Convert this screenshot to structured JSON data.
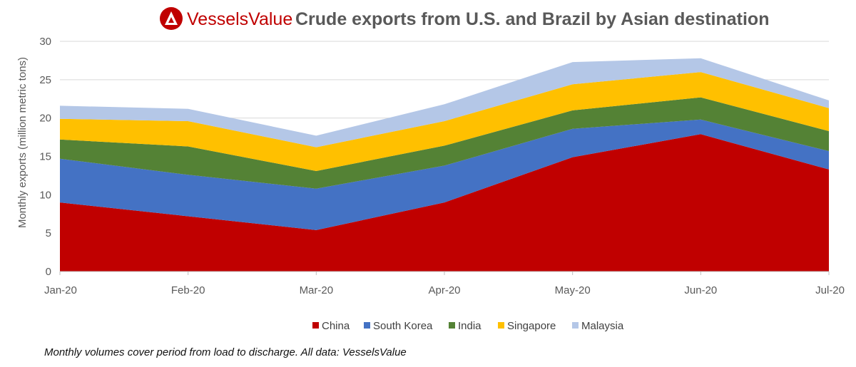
{
  "brand": {
    "name": "VesselsValue",
    "logo_color": "#c00000"
  },
  "footnote": "Monthly volumes cover period from load to discharge. All data: VesselsValue",
  "chart_data": {
    "type": "area",
    "stacked": true,
    "title": "Crude exports from U.S. and Brazil by Asian destination",
    "xlabel": "",
    "ylabel": "Monthly exports (million metric tons)",
    "categories": [
      "Jan-20",
      "Feb-20",
      "Mar-20",
      "Apr-20",
      "May-20",
      "Jun-20",
      "Jul-20"
    ],
    "ylim": [
      0,
      30
    ],
    "yticks": [
      0,
      5,
      10,
      15,
      20,
      25,
      30
    ],
    "grid": "horizontal",
    "legend": "bottom",
    "series": [
      {
        "name": "China",
        "color": "#c00000",
        "values": [
          9.0,
          7.2,
          5.4,
          9.0,
          14.9,
          17.9,
          13.3
        ]
      },
      {
        "name": "South Korea",
        "color": "#4472c4",
        "values": [
          5.7,
          5.4,
          5.4,
          4.8,
          3.7,
          1.9,
          2.4
        ]
      },
      {
        "name": "India",
        "color": "#548235",
        "values": [
          2.5,
          3.7,
          2.3,
          2.6,
          2.4,
          2.9,
          2.6
        ]
      },
      {
        "name": "Singapore",
        "color": "#ffc000",
        "values": [
          2.7,
          3.3,
          3.1,
          3.2,
          3.4,
          3.3,
          3.0
        ]
      },
      {
        "name": "Malaysia",
        "color": "#b4c7e7",
        "values": [
          1.7,
          1.6,
          1.5,
          2.2,
          2.9,
          1.8,
          1.0
        ]
      }
    ]
  }
}
